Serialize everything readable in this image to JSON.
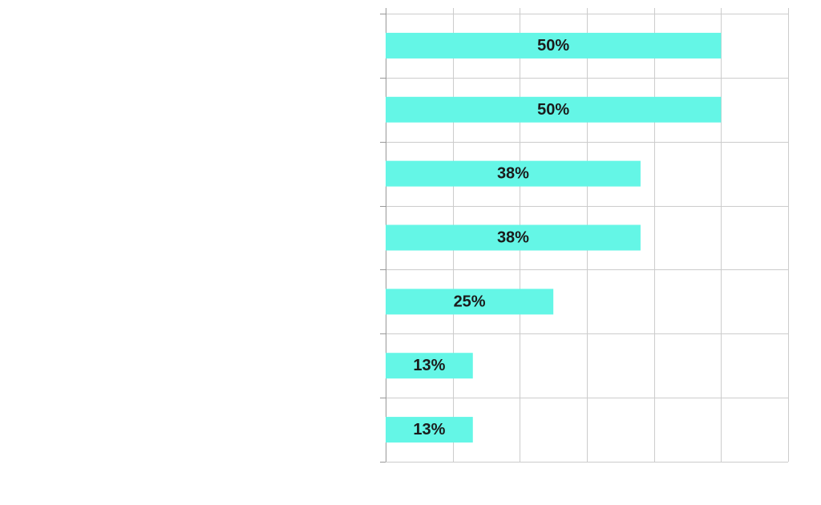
{
  "chart_data": {
    "type": "bar",
    "orientation": "horizontal",
    "categories": [
      "",
      "",
      "",
      "",
      "",
      "",
      ""
    ],
    "values": [
      50,
      50,
      38,
      38,
      25,
      13,
      13
    ],
    "data_labels": [
      "50%",
      "50%",
      "38%",
      "38%",
      "25%",
      "13%",
      "13%"
    ],
    "unit": "%",
    "xlim": [
      0,
      60
    ],
    "x_gridlines": [
      0,
      10,
      20,
      30,
      40,
      50,
      60
    ],
    "grid": true,
    "legend": "none",
    "title": "",
    "xlabel": "",
    "ylabel": "",
    "colors": {
      "bar": "#64F6E6",
      "grid": "#CCCCCC",
      "axis": "#999999",
      "label": "#1B1B1B"
    }
  }
}
